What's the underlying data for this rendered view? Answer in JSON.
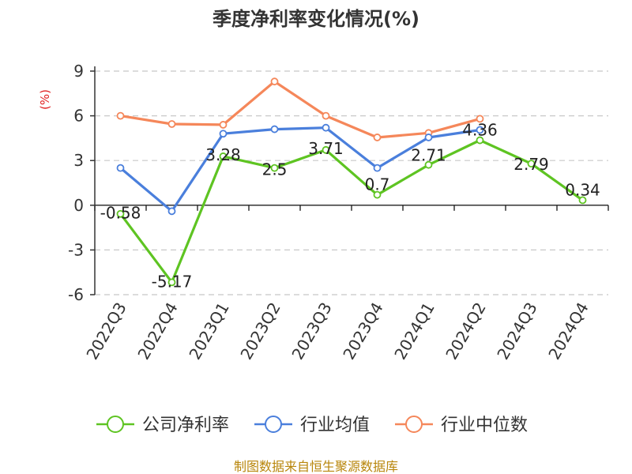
{
  "chart_data": {
    "type": "line",
    "title": "季度净利率变化情况(%)",
    "ylabel": "(%)",
    "categories": [
      "2022Q3",
      "2022Q4",
      "2023Q1",
      "2023Q2",
      "2023Q3",
      "2023Q4",
      "2024Q1",
      "2024Q2",
      "2024Q3",
      "2024Q4"
    ],
    "yticks": [
      9,
      6,
      3,
      0,
      -3,
      -6
    ],
    "ylim": [
      -6,
      9
    ],
    "grid": true,
    "legend_position": "bottom",
    "series": [
      {
        "name": "公司净利率",
        "color": "#5ec422",
        "values": [
          -0.58,
          -5.17,
          3.28,
          2.5,
          3.71,
          0.7,
          2.71,
          4.36,
          2.79,
          0.34
        ],
        "labels": [
          "-0.58",
          "-5.17",
          "3.28",
          "2.5",
          "3.71",
          "0.7",
          "2.71",
          "4.36",
          "2.79",
          "0.34"
        ]
      },
      {
        "name": "行业均值",
        "color": "#4a7fdc",
        "values": [
          2.5,
          -0.4,
          4.8,
          5.1,
          5.2,
          2.5,
          4.55,
          5.05,
          null,
          null
        ]
      },
      {
        "name": "行业中位数",
        "color": "#f5875a",
        "values": [
          6.0,
          5.45,
          5.4,
          8.3,
          6.0,
          4.55,
          4.85,
          5.8,
          null,
          null
        ]
      }
    ],
    "source": "制图数据来自恒生聚源数据库"
  },
  "colors": {
    "unit_label": "#e02020",
    "source_text": "#b8860b",
    "grid": "#c8c8c8",
    "axis": "#333333"
  }
}
